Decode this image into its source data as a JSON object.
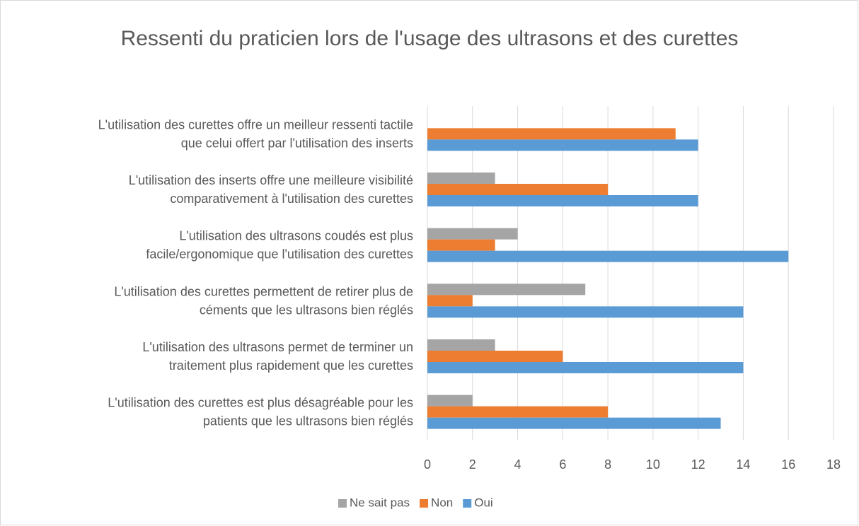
{
  "chart_data": {
    "type": "hbar",
    "title": "Ressenti du praticien lors de l'usage des ultrasons et des curettes",
    "categories": [
      [
        "L'utilisation des curettes offre un meilleur ressenti tactile",
        "que celui offert par l'utilisation des inserts"
      ],
      [
        "L'utilisation des inserts offre une meilleure visibilité",
        "comparativement à l'utilisation des curettes"
      ],
      [
        "L'utilisation des ultrasons coudés est plus",
        "facile/ergonomique que l'utilisation des curettes"
      ],
      [
        "L'utilisation des curettes permettent de retirer plus de",
        "céments que les ultrasons bien réglés"
      ],
      [
        "L'utilisation des ultrasons permet de terminer un",
        "traitement plus rapidement que les curettes"
      ],
      [
        "L'utilisation des curettes est plus désagréable pour les",
        "patients que les ultrasons bien réglés"
      ]
    ],
    "series": [
      {
        "name": "Ne sait pas",
        "color": "#a5a5a5",
        "values": [
          null,
          3,
          4,
          7,
          3,
          2
        ]
      },
      {
        "name": "Non",
        "color": "#ed7d31",
        "values": [
          11,
          8,
          3,
          2,
          6,
          8
        ]
      },
      {
        "name": "Oui",
        "color": "#5b9bd5",
        "values": [
          12,
          12,
          16,
          14,
          14,
          13
        ]
      }
    ],
    "xlim": [
      0,
      18
    ],
    "xticks": [
      0,
      2,
      4,
      6,
      8,
      10,
      12,
      14,
      16,
      18
    ],
    "grid": true,
    "legend": "bottom"
  }
}
